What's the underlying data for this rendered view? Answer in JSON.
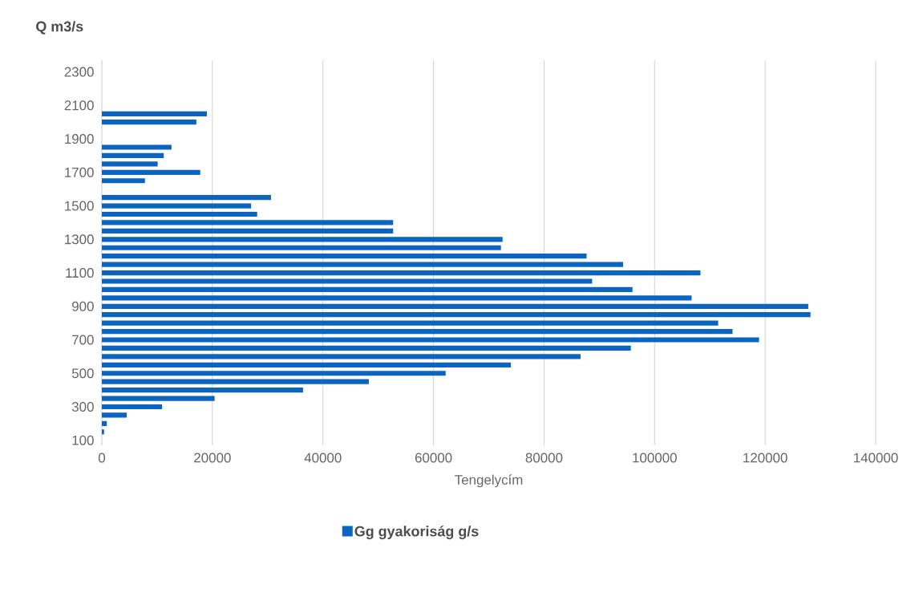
{
  "chart_data": {
    "type": "bar",
    "orientation": "horizontal",
    "ylabel": "Q m3/s",
    "xlabel": "Tengelycím",
    "categories": [
      "2300",
      null,
      null,
      null,
      "2100",
      null,
      null,
      null,
      "1900",
      null,
      null,
      null,
      "1700",
      null,
      null,
      null,
      "1500",
      null,
      null,
      null,
      "1300",
      null,
      null,
      null,
      "1100",
      null,
      null,
      null,
      "900",
      null,
      null,
      null,
      "700",
      null,
      null,
      null,
      "500",
      null,
      null,
      null,
      "300",
      null,
      null,
      null,
      "100"
    ],
    "series": [
      {
        "name": "Gg gyakoriság g/s",
        "color": "#0a64c0",
        "values": [
          null,
          null,
          null,
          null,
          null,
          19000,
          17100,
          null,
          null,
          12600,
          11200,
          10100,
          17800,
          7800,
          null,
          30600,
          27000,
          28100,
          52700,
          52700,
          72500,
          72200,
          87700,
          94300,
          108300,
          88700,
          96000,
          106700,
          127800,
          128200,
          111500,
          114100,
          118900,
          95700,
          86600,
          74000,
          62200,
          48300,
          36400,
          20400,
          10900,
          4500,
          900,
          400,
          null
        ]
      }
    ],
    "xlim": [
      0,
      140000
    ],
    "xticks": [
      0,
      20000,
      40000,
      60000,
      80000,
      100000,
      120000,
      140000
    ],
    "grid": "x",
    "legend": "bottom"
  }
}
